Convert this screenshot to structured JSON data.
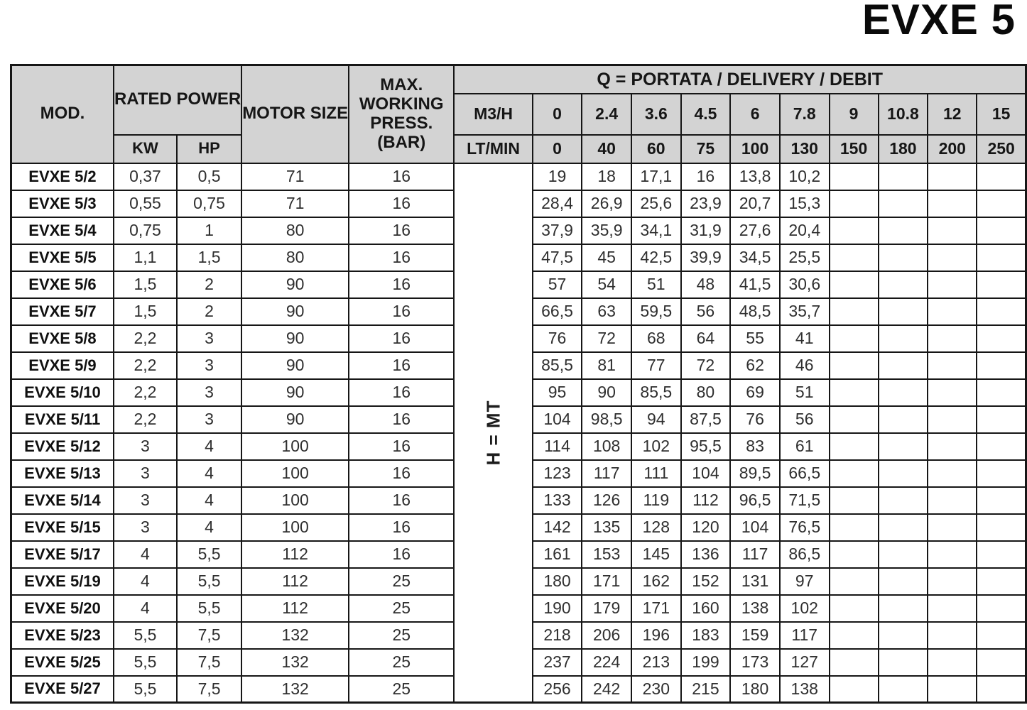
{
  "title": "EVXE 5",
  "colors": {
    "header_bg": "#d3d3d3",
    "border": "#161616",
    "text": "#161616"
  },
  "table": {
    "headers": {
      "mod": "MOD.",
      "rated_power": "RATED POWER",
      "kw": "KW",
      "hp": "HP",
      "motor_size": "MOTOR SIZE",
      "max_press": "MAX. WORKING PRESS.",
      "max_press_unit": "(BAR)",
      "q_title": "Q = PORTATA / DELIVERY / DEBIT",
      "m3h_label": "M3/H",
      "ltmin_label": "LT/MIN",
      "h_label": "H = MT",
      "m3h_values": [
        "0",
        "2.4",
        "3.6",
        "4.5",
        "6",
        "7.8",
        "9",
        "10.8",
        "12",
        "15"
      ],
      "ltmin_values": [
        "0",
        "40",
        "60",
        "75",
        "100",
        "130",
        "150",
        "180",
        "200",
        "250"
      ]
    },
    "rows": [
      {
        "mod": "EVXE 5/2",
        "kw": "0,37",
        "hp": "0,5",
        "size": "71",
        "press": "16",
        "h": [
          "19",
          "18",
          "17,1",
          "16",
          "13,8",
          "10,2",
          "",
          "",
          "",
          ""
        ]
      },
      {
        "mod": "EVXE 5/3",
        "kw": "0,55",
        "hp": "0,75",
        "size": "71",
        "press": "16",
        "h": [
          "28,4",
          "26,9",
          "25,6",
          "23,9",
          "20,7",
          "15,3",
          "",
          "",
          "",
          ""
        ]
      },
      {
        "mod": "EVXE 5/4",
        "kw": "0,75",
        "hp": "1",
        "size": "80",
        "press": "16",
        "h": [
          "37,9",
          "35,9",
          "34,1",
          "31,9",
          "27,6",
          "20,4",
          "",
          "",
          "",
          ""
        ]
      },
      {
        "mod": "EVXE 5/5",
        "kw": "1,1",
        "hp": "1,5",
        "size": "80",
        "press": "16",
        "h": [
          "47,5",
          "45",
          "42,5",
          "39,9",
          "34,5",
          "25,5",
          "",
          "",
          "",
          ""
        ]
      },
      {
        "mod": "EVXE 5/6",
        "kw": "1,5",
        "hp": "2",
        "size": "90",
        "press": "16",
        "h": [
          "57",
          "54",
          "51",
          "48",
          "41,5",
          "30,6",
          "",
          "",
          "",
          ""
        ]
      },
      {
        "mod": "EVXE 5/7",
        "kw": "1,5",
        "hp": "2",
        "size": "90",
        "press": "16",
        "h": [
          "66,5",
          "63",
          "59,5",
          "56",
          "48,5",
          "35,7",
          "",
          "",
          "",
          ""
        ]
      },
      {
        "mod": "EVXE 5/8",
        "kw": "2,2",
        "hp": "3",
        "size": "90",
        "press": "16",
        "h": [
          "76",
          "72",
          "68",
          "64",
          "55",
          "41",
          "",
          "",
          "",
          ""
        ]
      },
      {
        "mod": "EVXE 5/9",
        "kw": "2,2",
        "hp": "3",
        "size": "90",
        "press": "16",
        "h": [
          "85,5",
          "81",
          "77",
          "72",
          "62",
          "46",
          "",
          "",
          "",
          ""
        ]
      },
      {
        "mod": "EVXE 5/10",
        "kw": "2,2",
        "hp": "3",
        "size": "90",
        "press": "16",
        "h": [
          "95",
          "90",
          "85,5",
          "80",
          "69",
          "51",
          "",
          "",
          "",
          ""
        ]
      },
      {
        "mod": "EVXE 5/11",
        "kw": "2,2",
        "hp": "3",
        "size": "90",
        "press": "16",
        "h": [
          "104",
          "98,5",
          "94",
          "87,5",
          "76",
          "56",
          "",
          "",
          "",
          ""
        ]
      },
      {
        "mod": "EVXE 5/12",
        "kw": "3",
        "hp": "4",
        "size": "100",
        "press": "16",
        "h": [
          "114",
          "108",
          "102",
          "95,5",
          "83",
          "61",
          "",
          "",
          "",
          ""
        ]
      },
      {
        "mod": "EVXE 5/13",
        "kw": "3",
        "hp": "4",
        "size": "100",
        "press": "16",
        "h": [
          "123",
          "117",
          "111",
          "104",
          "89,5",
          "66,5",
          "",
          "",
          "",
          ""
        ]
      },
      {
        "mod": "EVXE 5/14",
        "kw": "3",
        "hp": "4",
        "size": "100",
        "press": "16",
        "h": [
          "133",
          "126",
          "119",
          "112",
          "96,5",
          "71,5",
          "",
          "",
          "",
          ""
        ]
      },
      {
        "mod": "EVXE 5/15",
        "kw": "3",
        "hp": "4",
        "size": "100",
        "press": "16",
        "h": [
          "142",
          "135",
          "128",
          "120",
          "104",
          "76,5",
          "",
          "",
          "",
          ""
        ]
      },
      {
        "mod": "EVXE 5/17",
        "kw": "4",
        "hp": "5,5",
        "size": "112",
        "press": "16",
        "h": [
          "161",
          "153",
          "145",
          "136",
          "117",
          "86,5",
          "",
          "",
          "",
          ""
        ]
      },
      {
        "mod": "EVXE 5/19",
        "kw": "4",
        "hp": "5,5",
        "size": "112",
        "press": "25",
        "h": [
          "180",
          "171",
          "162",
          "152",
          "131",
          "97",
          "",
          "",
          "",
          ""
        ]
      },
      {
        "mod": "EVXE 5/20",
        "kw": "4",
        "hp": "5,5",
        "size": "112",
        "press": "25",
        "h": [
          "190",
          "179",
          "171",
          "160",
          "138",
          "102",
          "",
          "",
          "",
          ""
        ]
      },
      {
        "mod": "EVXE 5/23",
        "kw": "5,5",
        "hp": "7,5",
        "size": "132",
        "press": "25",
        "h": [
          "218",
          "206",
          "196",
          "183",
          "159",
          "117",
          "",
          "",
          "",
          ""
        ]
      },
      {
        "mod": "EVXE 5/25",
        "kw": "5,5",
        "hp": "7,5",
        "size": "132",
        "press": "25",
        "h": [
          "237",
          "224",
          "213",
          "199",
          "173",
          "127",
          "",
          "",
          "",
          ""
        ]
      },
      {
        "mod": "EVXE 5/27",
        "kw": "5,5",
        "hp": "7,5",
        "size": "132",
        "press": "25",
        "h": [
          "256",
          "242",
          "230",
          "215",
          "180",
          "138",
          "",
          "",
          "",
          ""
        ]
      }
    ]
  }
}
